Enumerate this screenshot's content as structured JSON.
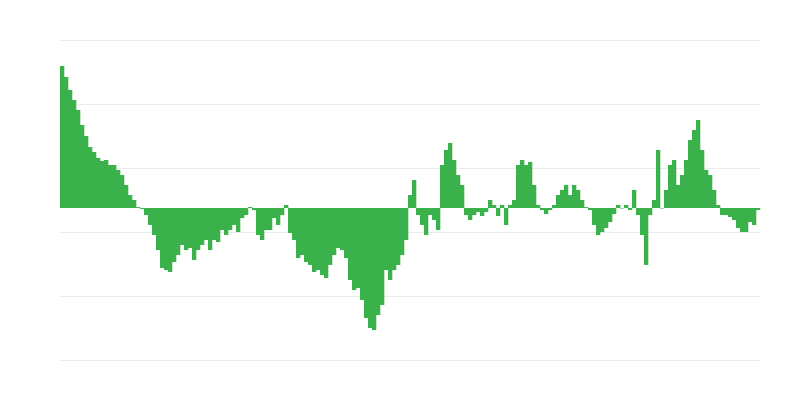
{
  "chart_data": {
    "type": "bar",
    "title": "",
    "xlabel": "",
    "ylabel": "",
    "ylim": [
      -9.5,
      10.5
    ],
    "gridlines": [
      10.5,
      6.5,
      2.5,
      -1.5,
      -5.5,
      -9.5
    ],
    "grid": true,
    "colors": {
      "bar": "#3ab14b",
      "grid": "#ebebeb"
    },
    "values": [
      8.88,
      8.19,
      7.38,
      6.75,
      6.13,
      5.19,
      4.5,
      3.81,
      3.5,
      3.13,
      2.94,
      3,
      2.69,
      2.69,
      2.38,
      2.06,
      1.44,
      0.81,
      0.5,
      0.06,
      -0.06,
      -0.44,
      -1.06,
      -1.69,
      -2.63,
      -3.75,
      -3.88,
      -4,
      -3.38,
      -2.94,
      -2.31,
      -2.63,
      -2.5,
      -3.25,
      -2.63,
      -2.31,
      -2,
      -2.63,
      -2,
      -2.13,
      -1.38,
      -1.69,
      -1.38,
      -1.06,
      -1.5,
      -0.63,
      -0.44,
      0.06,
      -0.13,
      -1.69,
      -2,
      -1.38,
      -1.38,
      -0.63,
      -1.06,
      -0.44,
      0.19,
      -1.56,
      -2,
      -3.13,
      -2.94,
      -3.38,
      -3.56,
      -4,
      -3.88,
      -4.19,
      -4.38,
      -3.56,
      -2.94,
      -2.5,
      -2.63,
      -3.13,
      -4.5,
      -5.13,
      -5,
      -5.75,
      -6.88,
      -7.5,
      -7.63,
      -6.69,
      -6.06,
      -3.88,
      -4.5,
      -3.88,
      -3.56,
      -2.94,
      -2,
      0.81,
      1.75,
      -0.44,
      -1.06,
      -1.69,
      -0.44,
      -0.75,
      -1.38,
      2.69,
      3.63,
      4.06,
      3,
      2.06,
      1.44,
      -0.44,
      -0.75,
      -0.44,
      -0.25,
      -0.5,
      -0.25,
      0.5,
      0.19,
      -0.5,
      0.19,
      -1.06,
      0.19,
      0.5,
      2.69,
      3,
      2.69,
      2.88,
      1.44,
      0.19,
      -0.13,
      -0.38,
      -0.13,
      0.19,
      0.81,
      1.13,
      1.44,
      0.81,
      1.44,
      1.13,
      0.5,
      0.06,
      -0.13,
      -1.06,
      -1.69,
      -1.5,
      -1.25,
      -0.88,
      -0.38,
      0.19,
      0,
      0.19,
      -0.13,
      1.13,
      -0.44,
      -1.69,
      -3.56,
      -0.44,
      0.5,
      3.63,
      0,
      1.13,
      2.69,
      3,
      1.44,
      2.06,
      3,
      4.25,
      4.88,
      5.5,
      3.63,
      2.38,
      2.06,
      1.13,
      0.19,
      -0.44,
      -0.44,
      -0.56,
      -0.75,
      -1.25,
      -1.5,
      -1.5,
      -0.88,
      -1.06,
      -0.13
    ]
  }
}
